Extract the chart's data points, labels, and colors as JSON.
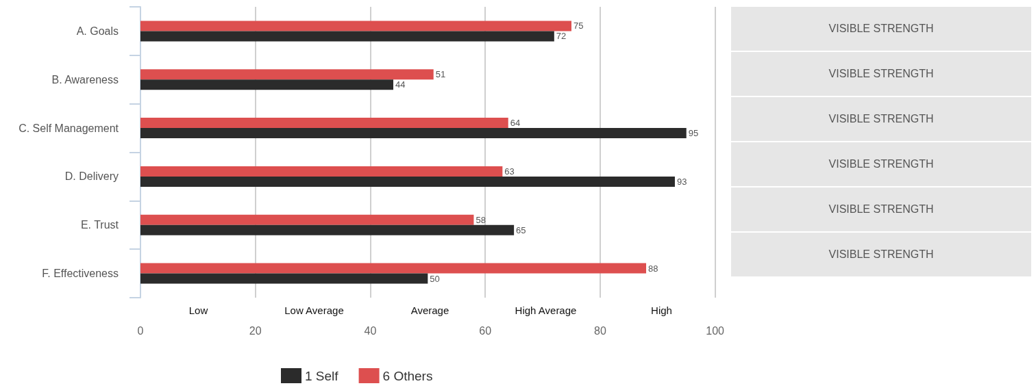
{
  "chart_data": [
    {
      "type": "bar",
      "orientation": "horizontal",
      "categories": [
        "A. Goals",
        "B. Awareness",
        "C. Self Management",
        "D. Delivery",
        "E. Trust",
        "F. Effectiveness"
      ],
      "series": [
        {
          "name": "1 Self",
          "color": "#2b2b2b",
          "values": [
            72,
            44,
            95,
            93,
            65,
            50
          ]
        },
        {
          "name": "6 Others",
          "color": "#dd4f4f",
          "values": [
            75,
            51,
            64,
            63,
            58,
            88
          ]
        }
      ],
      "xlim": [
        0,
        100
      ],
      "xticks": [
        0,
        20,
        40,
        60,
        80,
        100
      ],
      "grid": "x",
      "legend": "bottom",
      "data_labels": true,
      "annotations": [
        "Low",
        "Low Average",
        "Average",
        "High Average",
        "High"
      ]
    },
    {
      "type": "other",
      "annotations": [
        "VISIBLE STRENGTH",
        "VISIBLE STRENGTH",
        "VISIBLE STRENGTH",
        "VISIBLE STRENGTH",
        "VISIBLE STRENGTH",
        "VISIBLE STRENGTH"
      ]
    }
  ]
}
